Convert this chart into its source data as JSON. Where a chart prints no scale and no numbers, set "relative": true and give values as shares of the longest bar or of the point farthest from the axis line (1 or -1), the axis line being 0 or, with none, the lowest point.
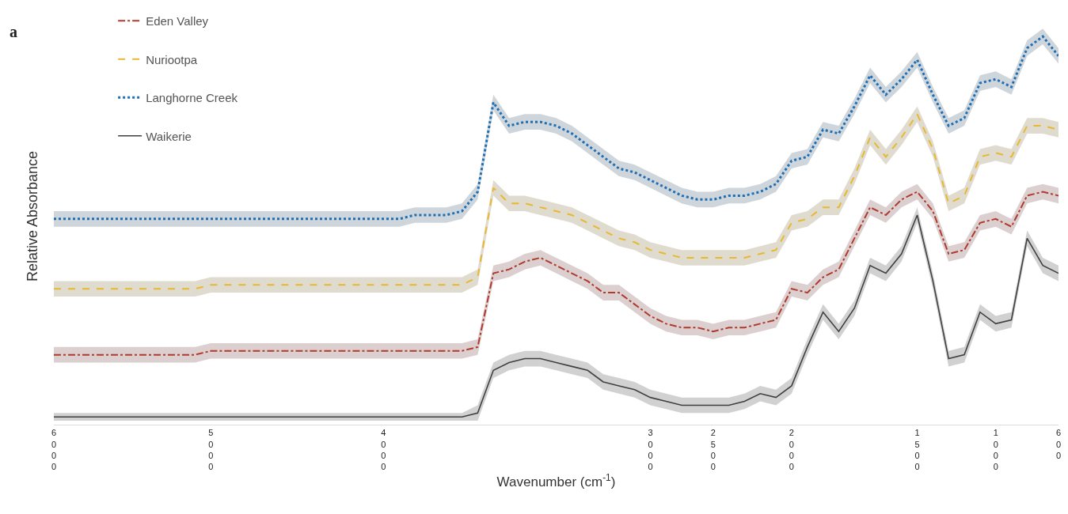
{
  "chart_data": {
    "type": "line",
    "title": "a",
    "xlabel": "Wavenumber (cm$^{-1}$)",
    "ylabel": "Relative Absorbance",
    "relative": true,
    "legend": "top left",
    "categories": [
      "6000",
      null,
      null,
      null,
      null,
      null,
      null,
      null,
      null,
      null,
      "5000",
      null,
      null,
      null,
      null,
      null,
      null,
      null,
      null,
      null,
      null,
      "4000",
      null,
      null,
      null,
      null,
      null,
      null,
      null,
      null,
      null,
      null,
      null,
      null,
      null,
      null,
      null,
      null,
      "3000",
      null,
      null,
      null,
      "2500",
      null,
      null,
      null,
      null,
      "2000",
      null,
      null,
      null,
      null,
      null,
      null,
      null,
      "1500",
      null,
      null,
      null,
      null,
      "1000",
      null,
      null,
      null,
      "600"
    ],
    "series": [
      {
        "name": "Eden Valley",
        "color": "#b03a2e",
        "line_style": "dashdot",
        "values": [
          0.18,
          0.18,
          0.18,
          0.18,
          0.18,
          0.18,
          0.18,
          0.18,
          0.18,
          0.18,
          0.19,
          0.19,
          0.19,
          0.19,
          0.19,
          0.19,
          0.19,
          0.19,
          0.19,
          0.19,
          0.19,
          0.19,
          0.19,
          0.19,
          0.19,
          0.19,
          0.19,
          0.2,
          0.39,
          0.4,
          0.42,
          0.43,
          0.41,
          0.39,
          0.37,
          0.34,
          0.34,
          0.31,
          0.28,
          0.26,
          0.25,
          0.25,
          0.24,
          0.25,
          0.25,
          0.26,
          0.27,
          0.35,
          0.34,
          0.38,
          0.4,
          0.48,
          0.56,
          0.54,
          0.58,
          0.6,
          0.55,
          0.44,
          0.45,
          0.52,
          0.53,
          0.51,
          0.59,
          0.6,
          0.59
        ],
        "lower": [
          0.16,
          0.16,
          0.16,
          0.16,
          0.16,
          0.16,
          0.16,
          0.16,
          0.16,
          0.16,
          0.17,
          0.17,
          0.17,
          0.17,
          0.17,
          0.17,
          0.17,
          0.17,
          0.17,
          0.17,
          0.17,
          0.17,
          0.17,
          0.17,
          0.17,
          0.17,
          0.17,
          0.18,
          0.37,
          0.38,
          0.4,
          0.41,
          0.39,
          0.37,
          0.35,
          0.32,
          0.32,
          0.29,
          0.26,
          0.24,
          0.23,
          0.23,
          0.22,
          0.23,
          0.23,
          0.24,
          0.25,
          0.33,
          0.32,
          0.36,
          0.38,
          0.46,
          0.54,
          0.52,
          0.56,
          0.58,
          0.53,
          0.42,
          0.43,
          0.5,
          0.51,
          0.49,
          0.57,
          0.58,
          0.57
        ],
        "upper": [
          0.2,
          0.2,
          0.2,
          0.2,
          0.2,
          0.2,
          0.2,
          0.2,
          0.2,
          0.2,
          0.21,
          0.21,
          0.21,
          0.21,
          0.21,
          0.21,
          0.21,
          0.21,
          0.21,
          0.21,
          0.21,
          0.21,
          0.21,
          0.21,
          0.21,
          0.21,
          0.21,
          0.22,
          0.41,
          0.42,
          0.44,
          0.45,
          0.43,
          0.41,
          0.39,
          0.36,
          0.36,
          0.33,
          0.3,
          0.28,
          0.27,
          0.27,
          0.26,
          0.27,
          0.27,
          0.28,
          0.29,
          0.37,
          0.36,
          0.4,
          0.42,
          0.5,
          0.58,
          0.56,
          0.6,
          0.62,
          0.57,
          0.46,
          0.47,
          0.54,
          0.55,
          0.53,
          0.61,
          0.62,
          0.61
        ]
      },
      {
        "name": "Nuriootpa",
        "color": "#e8b830",
        "line_style": "dashed",
        "values": [
          0.35,
          0.35,
          0.35,
          0.35,
          0.35,
          0.35,
          0.35,
          0.35,
          0.35,
          0.35,
          0.36,
          0.36,
          0.36,
          0.36,
          0.36,
          0.36,
          0.36,
          0.36,
          0.36,
          0.36,
          0.36,
          0.36,
          0.36,
          0.36,
          0.36,
          0.36,
          0.36,
          0.38,
          0.61,
          0.57,
          0.57,
          0.56,
          0.55,
          0.54,
          0.52,
          0.5,
          0.48,
          0.47,
          0.45,
          0.44,
          0.43,
          0.43,
          0.43,
          0.43,
          0.43,
          0.44,
          0.45,
          0.52,
          0.53,
          0.56,
          0.56,
          0.64,
          0.74,
          0.69,
          0.74,
          0.8,
          0.71,
          0.57,
          0.59,
          0.69,
          0.7,
          0.69,
          0.77,
          0.77,
          0.76
        ],
        "lower": [
          0.33,
          0.33,
          0.33,
          0.33,
          0.33,
          0.33,
          0.33,
          0.33,
          0.33,
          0.33,
          0.34,
          0.34,
          0.34,
          0.34,
          0.34,
          0.34,
          0.34,
          0.34,
          0.34,
          0.34,
          0.34,
          0.34,
          0.34,
          0.34,
          0.34,
          0.34,
          0.34,
          0.36,
          0.59,
          0.55,
          0.55,
          0.54,
          0.53,
          0.52,
          0.5,
          0.48,
          0.46,
          0.45,
          0.43,
          0.42,
          0.41,
          0.41,
          0.41,
          0.41,
          0.41,
          0.42,
          0.43,
          0.5,
          0.51,
          0.54,
          0.54,
          0.62,
          0.72,
          0.67,
          0.72,
          0.78,
          0.69,
          0.55,
          0.57,
          0.67,
          0.68,
          0.67,
          0.75,
          0.75,
          0.74
        ],
        "upper": [
          0.37,
          0.37,
          0.37,
          0.37,
          0.37,
          0.37,
          0.37,
          0.37,
          0.37,
          0.37,
          0.38,
          0.38,
          0.38,
          0.38,
          0.38,
          0.38,
          0.38,
          0.38,
          0.38,
          0.38,
          0.38,
          0.38,
          0.38,
          0.38,
          0.38,
          0.38,
          0.38,
          0.4,
          0.63,
          0.59,
          0.59,
          0.58,
          0.57,
          0.56,
          0.54,
          0.52,
          0.5,
          0.49,
          0.47,
          0.46,
          0.45,
          0.45,
          0.45,
          0.45,
          0.45,
          0.46,
          0.47,
          0.54,
          0.55,
          0.58,
          0.58,
          0.66,
          0.76,
          0.71,
          0.76,
          0.82,
          0.73,
          0.59,
          0.61,
          0.71,
          0.72,
          0.71,
          0.79,
          0.79,
          0.78
        ]
      },
      {
        "name": "Langhorne Creek",
        "color": "#1f6fb5",
        "line_style": "dotted",
        "values": [
          0.53,
          0.53,
          0.53,
          0.53,
          0.53,
          0.53,
          0.53,
          0.53,
          0.53,
          0.53,
          0.53,
          0.53,
          0.53,
          0.53,
          0.53,
          0.53,
          0.53,
          0.53,
          0.53,
          0.53,
          0.53,
          0.53,
          0.53,
          0.54,
          0.54,
          0.54,
          0.55,
          0.6,
          0.83,
          0.77,
          0.78,
          0.78,
          0.77,
          0.75,
          0.72,
          0.69,
          0.66,
          0.65,
          0.63,
          0.61,
          0.59,
          0.58,
          0.58,
          0.59,
          0.59,
          0.6,
          0.62,
          0.68,
          0.69,
          0.76,
          0.75,
          0.82,
          0.9,
          0.85,
          0.89,
          0.94,
          0.85,
          0.77,
          0.79,
          0.88,
          0.89,
          0.87,
          0.97,
          1.0,
          0.95
        ],
        "lower": [
          0.51,
          0.51,
          0.51,
          0.51,
          0.51,
          0.51,
          0.51,
          0.51,
          0.51,
          0.51,
          0.51,
          0.51,
          0.51,
          0.51,
          0.51,
          0.51,
          0.51,
          0.51,
          0.51,
          0.51,
          0.51,
          0.51,
          0.51,
          0.52,
          0.52,
          0.52,
          0.53,
          0.58,
          0.81,
          0.75,
          0.76,
          0.76,
          0.75,
          0.73,
          0.7,
          0.67,
          0.64,
          0.63,
          0.61,
          0.59,
          0.57,
          0.56,
          0.56,
          0.57,
          0.57,
          0.58,
          0.6,
          0.66,
          0.67,
          0.74,
          0.73,
          0.8,
          0.88,
          0.83,
          0.87,
          0.92,
          0.83,
          0.75,
          0.77,
          0.86,
          0.87,
          0.85,
          0.95,
          0.98,
          0.93
        ],
        "upper": [
          0.55,
          0.55,
          0.55,
          0.55,
          0.55,
          0.55,
          0.55,
          0.55,
          0.55,
          0.55,
          0.55,
          0.55,
          0.55,
          0.55,
          0.55,
          0.55,
          0.55,
          0.55,
          0.55,
          0.55,
          0.55,
          0.55,
          0.55,
          0.56,
          0.56,
          0.56,
          0.57,
          0.62,
          0.85,
          0.79,
          0.8,
          0.8,
          0.79,
          0.77,
          0.74,
          0.71,
          0.68,
          0.67,
          0.65,
          0.63,
          0.61,
          0.6,
          0.6,
          0.61,
          0.61,
          0.62,
          0.64,
          0.7,
          0.71,
          0.78,
          0.77,
          0.84,
          0.92,
          0.87,
          0.91,
          0.96,
          0.87,
          0.79,
          0.81,
          0.9,
          0.91,
          0.89,
          0.99,
          1.02,
          0.97
        ]
      },
      {
        "name": "Waikerie",
        "color": "#404040",
        "line_style": "solid",
        "values": [
          0.02,
          0.02,
          0.02,
          0.02,
          0.02,
          0.02,
          0.02,
          0.02,
          0.02,
          0.02,
          0.02,
          0.02,
          0.02,
          0.02,
          0.02,
          0.02,
          0.02,
          0.02,
          0.02,
          0.02,
          0.02,
          0.02,
          0.02,
          0.02,
          0.02,
          0.02,
          0.02,
          0.03,
          0.14,
          0.16,
          0.17,
          0.17,
          0.16,
          0.15,
          0.14,
          0.11,
          0.1,
          0.09,
          0.07,
          0.06,
          0.05,
          0.05,
          0.05,
          0.05,
          0.06,
          0.08,
          0.07,
          0.1,
          0.2,
          0.29,
          0.24,
          0.3,
          0.41,
          0.39,
          0.44,
          0.54,
          0.37,
          0.17,
          0.18,
          0.29,
          0.26,
          0.27,
          0.48,
          0.41,
          0.39
        ],
        "lower": [
          0.01,
          0.01,
          0.01,
          0.01,
          0.01,
          0.01,
          0.01,
          0.01,
          0.01,
          0.01,
          0.01,
          0.01,
          0.01,
          0.01,
          0.01,
          0.01,
          0.01,
          0.01,
          0.01,
          0.01,
          0.01,
          0.01,
          0.01,
          0.01,
          0.01,
          0.01,
          0.01,
          0.01,
          0.12,
          0.14,
          0.15,
          0.15,
          0.14,
          0.13,
          0.12,
          0.09,
          0.08,
          0.07,
          0.05,
          0.04,
          0.03,
          0.03,
          0.03,
          0.03,
          0.04,
          0.06,
          0.05,
          0.08,
          0.18,
          0.27,
          0.22,
          0.28,
          0.39,
          0.37,
          0.42,
          0.52,
          0.35,
          0.15,
          0.16,
          0.27,
          0.24,
          0.25,
          0.46,
          0.39,
          0.37
        ],
        "upper": [
          0.03,
          0.03,
          0.03,
          0.03,
          0.03,
          0.03,
          0.03,
          0.03,
          0.03,
          0.03,
          0.03,
          0.03,
          0.03,
          0.03,
          0.03,
          0.03,
          0.03,
          0.03,
          0.03,
          0.03,
          0.03,
          0.03,
          0.03,
          0.03,
          0.03,
          0.03,
          0.03,
          0.05,
          0.16,
          0.18,
          0.19,
          0.19,
          0.18,
          0.17,
          0.16,
          0.13,
          0.12,
          0.11,
          0.09,
          0.08,
          0.07,
          0.07,
          0.07,
          0.07,
          0.08,
          0.1,
          0.09,
          0.12,
          0.22,
          0.31,
          0.26,
          0.32,
          0.43,
          0.41,
          0.46,
          0.56,
          0.39,
          0.19,
          0.2,
          0.31,
          0.28,
          0.29,
          0.5,
          0.43,
          0.41
        ]
      }
    ]
  }
}
